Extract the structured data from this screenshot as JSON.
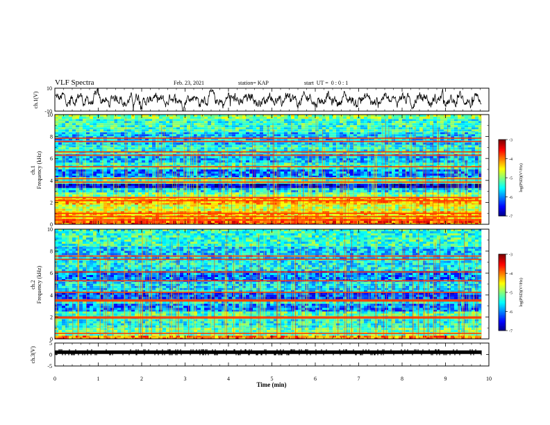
{
  "header": {
    "title": "VLF Spectra",
    "date": "Feb. 23, 2021",
    "station": "station= KAP",
    "start_ut": "start  UT =  0 : 0 : 1"
  },
  "chart_data": [
    {
      "type": "line",
      "panel": "ch1-waveform",
      "ylabel": "ch.1(V)",
      "ylim": [
        -10,
        10
      ],
      "yticks": [
        "10",
        "-10"
      ],
      "xlim": [
        0,
        10
      ],
      "x_extent_min": 9.83,
      "series": [
        {
          "color": "#000000"
        }
      ]
    },
    {
      "type": "heatmap",
      "panel": "ch1-spectrogram",
      "ylabel_lines": [
        "ch.1",
        "Frequency (kHz)"
      ],
      "ylim": [
        0,
        10
      ],
      "yticks": [
        "0",
        "2",
        "4",
        "6",
        "8",
        "10"
      ],
      "xlim": [
        0,
        10
      ],
      "x_extent_min": 9.83,
      "colorbar": {
        "range": [
          -7,
          -3
        ],
        "ticks": [
          "-3",
          "-4",
          "-5",
          "-6",
          "-7"
        ],
        "label": "log(PSD)(V²/Hz)"
      },
      "bands_khz": [
        {
          "from": 0.0,
          "to": 0.5,
          "level": -3.8
        },
        {
          "from": 0.5,
          "to": 1.2,
          "level": -4.3
        },
        {
          "from": 1.2,
          "to": 1.8,
          "level": -4.7
        },
        {
          "from": 1.8,
          "to": 2.5,
          "level": -4.2
        },
        {
          "from": 2.5,
          "to": 2.9,
          "level": -5.0
        },
        {
          "from": 2.9,
          "to": 3.3,
          "level": -5.6
        },
        {
          "from": 3.3,
          "to": 3.7,
          "level": -6.6
        },
        {
          "from": 3.7,
          "to": 4.3,
          "level": -5.2
        },
        {
          "from": 4.3,
          "to": 5.0,
          "level": -6.0
        },
        {
          "from": 5.0,
          "to": 5.6,
          "level": -5.3
        },
        {
          "from": 5.6,
          "to": 6.4,
          "level": -5.8
        },
        {
          "from": 6.4,
          "to": 7.2,
          "level": -5.4
        },
        {
          "from": 7.2,
          "to": 8.4,
          "level": -5.7
        },
        {
          "from": 8.4,
          "to": 9.6,
          "level": -5.3
        },
        {
          "from": 9.6,
          "to": 10.0,
          "level": -4.9
        }
      ],
      "lines_khz": [
        0.4,
        0.7,
        1.0,
        2.15,
        2.45,
        3.85,
        4.15,
        5.25,
        6.3,
        6.6,
        7.55,
        7.85
      ]
    },
    {
      "type": "heatmap",
      "panel": "ch2-spectrogram",
      "ylabel_lines": [
        "ch.2",
        "Frequency (kHz)"
      ],
      "ylim": [
        0,
        10
      ],
      "yticks": [
        "0",
        "2",
        "4",
        "6",
        "8",
        "10"
      ],
      "xlim": [
        0,
        10
      ],
      "x_extent_min": 9.83,
      "colorbar": {
        "range": [
          -7,
          -3
        ],
        "ticks": [
          "-3",
          "-4",
          "-5",
          "-6",
          "-7"
        ],
        "label": "log(PSD)(V²/Hz)"
      },
      "bands_khz": [
        {
          "from": 0.0,
          "to": 0.3,
          "level": -4.0
        },
        {
          "from": 0.3,
          "to": 1.0,
          "level": -5.1
        },
        {
          "from": 1.0,
          "to": 1.8,
          "level": -5.4
        },
        {
          "from": 1.8,
          "to": 2.5,
          "level": -5.2
        },
        {
          "from": 2.5,
          "to": 3.2,
          "level": -6.0
        },
        {
          "from": 3.2,
          "to": 3.6,
          "level": -5.4
        },
        {
          "from": 3.6,
          "to": 4.2,
          "level": -6.2
        },
        {
          "from": 4.2,
          "to": 5.2,
          "level": -5.6
        },
        {
          "from": 5.2,
          "to": 6.2,
          "level": -6.0
        },
        {
          "from": 6.2,
          "to": 7.3,
          "level": -5.5
        },
        {
          "from": 7.3,
          "to": 8.4,
          "level": -5.7
        },
        {
          "from": 8.4,
          "to": 10.0,
          "level": -5.3
        }
      ],
      "lines_khz": [
        0.5,
        1.9,
        2.0,
        3.45,
        3.55,
        4.25,
        5.3,
        6.1,
        7.25,
        7.55
      ]
    },
    {
      "type": "line",
      "panel": "ch3-waveform",
      "ylabel": "ch.3(V)",
      "ylim": [
        -5,
        5
      ],
      "yticks": [
        "5",
        "0",
        "-5"
      ],
      "xlim": [
        0,
        10
      ],
      "x_extent_min": 9.83,
      "center_level": 1.0,
      "series": [
        {
          "color": "#000000"
        }
      ]
    }
  ],
  "x_axis": {
    "label": "Time (min)",
    "ticks": [
      "0",
      "1",
      "2",
      "3",
      "4",
      "5",
      "6",
      "7",
      "8",
      "9",
      "10"
    ]
  }
}
